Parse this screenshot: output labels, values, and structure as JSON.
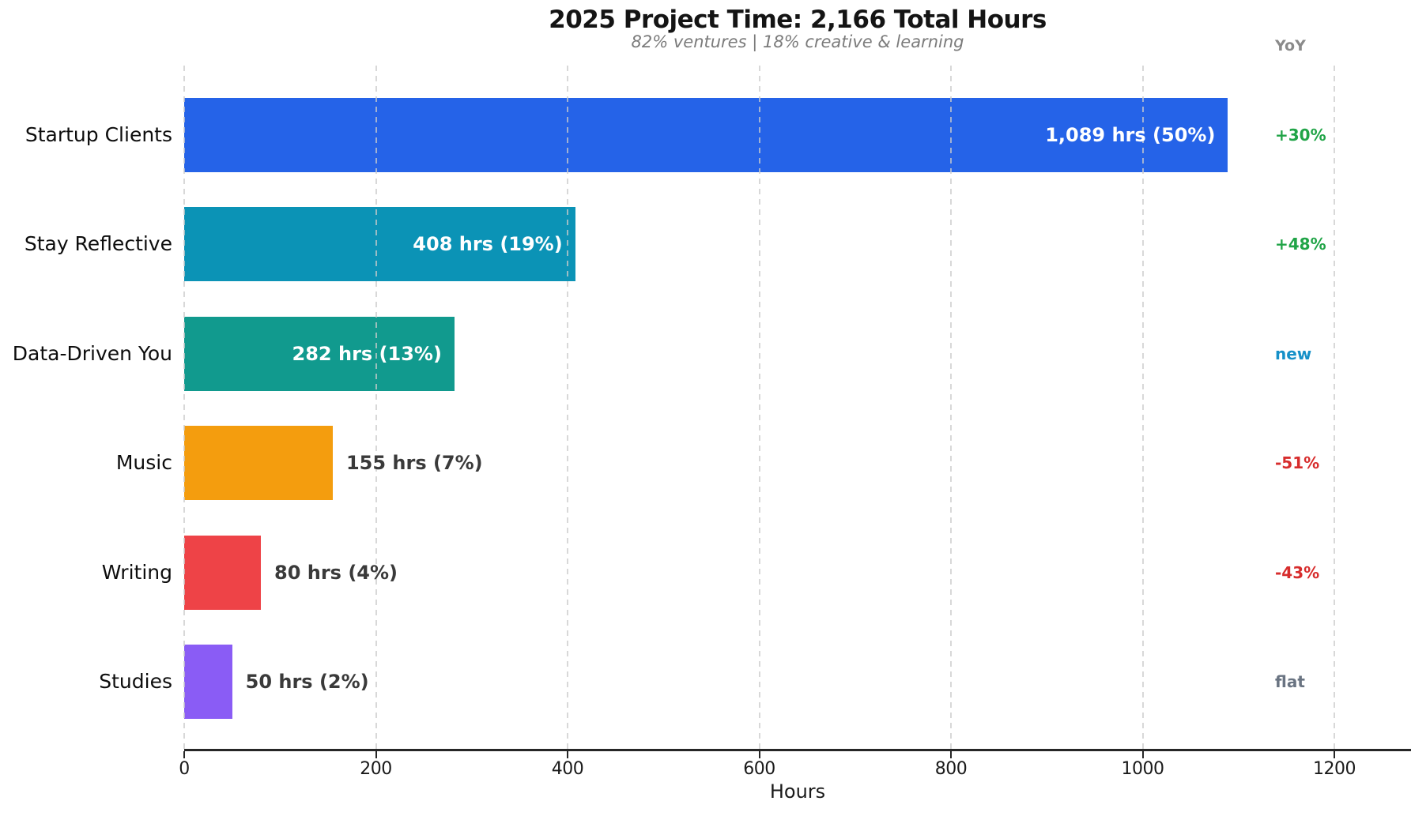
{
  "chart_data": {
    "type": "bar",
    "orientation": "horizontal",
    "title": "2025 Project Time: 2,166 Total Hours",
    "subtitle": "82% ventures | 18% creative & learning",
    "xlabel": "Hours",
    "categories": [
      "Startup Clients",
      "Stay Reflective",
      "Data-Driven You",
      "Music",
      "Writing",
      "Studies"
    ],
    "values": [
      1089,
      408,
      282,
      155,
      80,
      50
    ],
    "bar_labels": [
      "1,089 hrs (50%)",
      "408 hrs (19%)",
      "282 hrs (13%)",
      "155 hrs (7%)",
      "80 hrs (4%)",
      "50 hrs (2%)"
    ],
    "bar_colors": [
      "#2563e8",
      "#0b93b6",
      "#119a8e",
      "#f49d0e",
      "#ee4347",
      "#8a5cf5"
    ],
    "xticks": [
      0,
      200,
      400,
      600,
      800,
      1000,
      1200
    ],
    "xlim": [
      0,
      1280
    ],
    "grid": "vertical-dashed",
    "legend": "none",
    "yoy": {
      "header": "YoY",
      "values": [
        "+30%",
        "+48%",
        "new",
        "-51%",
        "-43%",
        "flat"
      ],
      "colors": [
        "#20a447",
        "#20a447",
        "#1590c8",
        "#d72c2c",
        "#d72c2c",
        "#6a7482"
      ]
    }
  },
  "colors": {
    "axis": "#262626",
    "grid": "#cbcbcb",
    "title_text": "#141414",
    "subtitle_text": "#7b7b7b",
    "inside_label": "#ffffff",
    "outside_label": "#3a3a3a",
    "yoy_header": "#8a8a8a"
  }
}
